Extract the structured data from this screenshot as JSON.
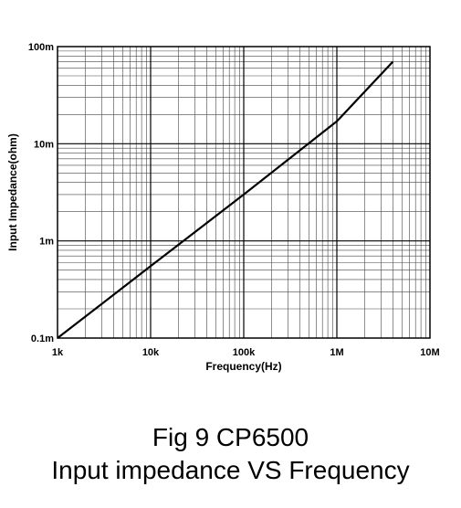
{
  "caption": {
    "line1": "Fig 9 CP6500",
    "line2": "Input impedance VS Frequency"
  },
  "chart_data": {
    "type": "line",
    "xlabel": "Frequency(Hz)",
    "ylabel": "Input Impedance(ohm)",
    "x_scale": "log",
    "y_scale": "log",
    "xlim": [
      1000,
      10000000
    ],
    "ylim": [
      0.1,
      100
    ],
    "x_ticks": [
      {
        "value": 1000,
        "label": "1k"
      },
      {
        "value": 10000,
        "label": "10k"
      },
      {
        "value": 100000,
        "label": "100k"
      },
      {
        "value": 1000000,
        "label": "1M"
      },
      {
        "value": 10000000,
        "label": "10M"
      }
    ],
    "y_ticks": [
      {
        "value": 0.1,
        "label": "0.1m"
      },
      {
        "value": 1,
        "label": "1m"
      },
      {
        "value": 10,
        "label": "10m"
      },
      {
        "value": 100,
        "label": "100m"
      }
    ],
    "grid": true,
    "series": [
      {
        "color": "#000000",
        "x": [
          1000,
          10000,
          100000,
          1000000,
          4000000
        ],
        "y": [
          0.1,
          0.55,
          3.0,
          17.0,
          70.0
        ]
      }
    ]
  }
}
